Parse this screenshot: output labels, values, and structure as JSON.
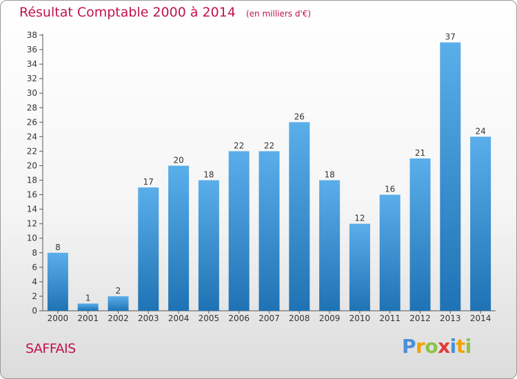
{
  "title": "Résultat Comptable 2000 à 2014",
  "unit": "(en milliers d'€)",
  "commune": "SAFFAIS",
  "logo": {
    "letters": [
      "P",
      "r",
      "o",
      "x",
      "i",
      "t",
      "i"
    ],
    "colors": [
      "#4a90d9",
      "#f2a100",
      "#8bc34a",
      "#e53935",
      "#4a90d9",
      "#f2a100",
      "#8bc34a"
    ]
  },
  "colors": {
    "bar_top": "#5aaeea",
    "bar_bottom": "#1f73b4",
    "title": "#c0124f",
    "grid": "#b0b0b0"
  },
  "chart_data": {
    "type": "bar",
    "title": "Résultat Comptable 2000 à 2014",
    "xlabel": "",
    "ylabel": "",
    "categories": [
      "2000",
      "2001",
      "2002",
      "2003",
      "2004",
      "2005",
      "2006",
      "2007",
      "2008",
      "2009",
      "2010",
      "2011",
      "2012",
      "2013",
      "2014"
    ],
    "values": [
      8,
      1,
      2,
      17,
      20,
      18,
      22,
      22,
      26,
      18,
      12,
      16,
      21,
      37,
      24
    ],
    "ylim": [
      0,
      38
    ],
    "yticks": [
      0,
      2,
      4,
      6,
      8,
      10,
      12,
      14,
      16,
      18,
      20,
      22,
      24,
      26,
      28,
      30,
      32,
      34,
      36,
      38
    ],
    "grid": false,
    "legend": "none"
  }
}
